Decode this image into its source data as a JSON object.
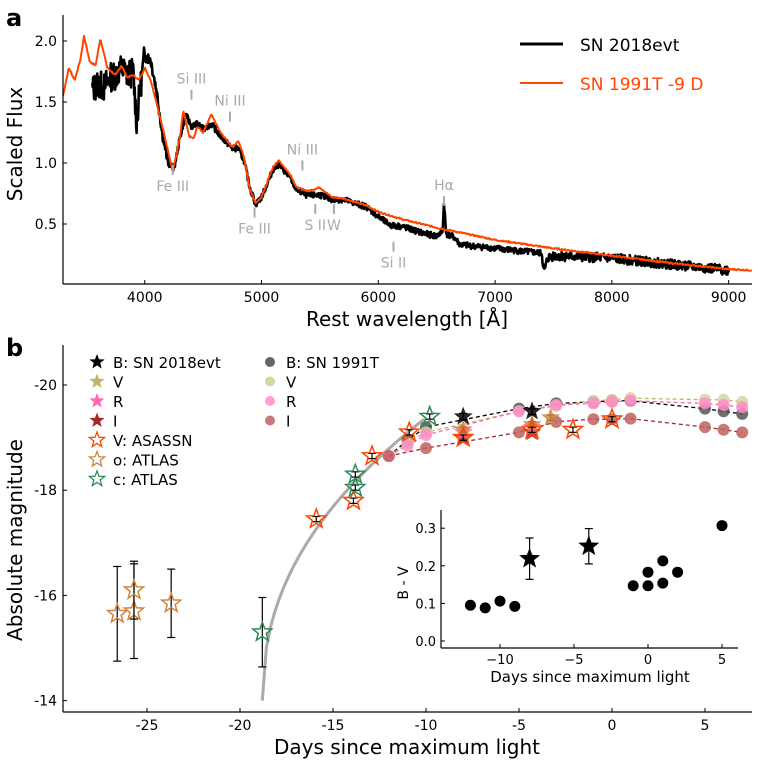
{
  "chart_data": [
    {
      "panel_label": "a",
      "type": "line",
      "xlabel": "Rest wavelength [Å]",
      "ylabel": "Scaled Flux",
      "xlim": [
        3300,
        9200
      ],
      "ylim": [
        0.0,
        2.2
      ],
      "xticks": [
        4000,
        5000,
        6000,
        7000,
        8000,
        9000
      ],
      "yticks": [
        0.5,
        1.0,
        1.5,
        2.0
      ],
      "ytick_labels": [
        "0.5",
        "1.0",
        "1.5",
        "2.0"
      ],
      "legend": {
        "placement": "top-right",
        "entries": [
          {
            "label": "SN 2018evt",
            "color": "#000000"
          },
          {
            "label": "SN 1991T -9 D",
            "color": "#ff4500"
          }
        ]
      },
      "series": [
        {
          "name": "SN 2018evt",
          "color": "#000000",
          "noisy": true,
          "x": [
            3550,
            3600,
            3650,
            3700,
            3750,
            3800,
            3850,
            3900,
            3930,
            3960,
            4000,
            4050,
            4100,
            4150,
            4200,
            4250,
            4300,
            4350,
            4400,
            4450,
            4500,
            4570,
            4650,
            4750,
            4800,
            4850,
            4900,
            4950,
            5000,
            5100,
            5150,
            5250,
            5300,
            5400,
            5500,
            5600,
            5700,
            5900,
            6000,
            6100,
            6200,
            6400,
            6500,
            6550,
            6563,
            6580,
            6650,
            6700,
            7000,
            7400,
            7420,
            7450,
            7500,
            8000,
            8500,
            9000,
            9005
          ],
          "y": [
            1.6,
            1.65,
            1.62,
            1.7,
            1.72,
            1.78,
            1.72,
            1.75,
            1.35,
            1.6,
            1.88,
            1.85,
            1.6,
            1.25,
            1.0,
            0.95,
            1.2,
            1.4,
            1.3,
            1.32,
            1.28,
            1.32,
            1.22,
            1.12,
            1.12,
            1.02,
            0.8,
            0.66,
            0.72,
            0.95,
            0.99,
            0.87,
            0.78,
            0.73,
            0.74,
            0.7,
            0.7,
            0.64,
            0.56,
            0.49,
            0.48,
            0.42,
            0.4,
            0.44,
            0.68,
            0.42,
            0.39,
            0.33,
            0.3,
            0.26,
            0.1,
            0.22,
            0.24,
            0.22,
            0.17,
            0.12,
            0.22
          ]
        },
        {
          "name": "SN 1991T -9 D",
          "color": "#ff4500",
          "noisy": false,
          "x": [
            3300,
            3350,
            3400,
            3450,
            3480,
            3530,
            3580,
            3620,
            3680,
            3750,
            3800,
            3850,
            3900,
            3950,
            4000,
            4050,
            4100,
            4200,
            4240,
            4300,
            4330,
            4380,
            4420,
            4450,
            4500,
            4570,
            4650,
            4750,
            4800,
            4850,
            4900,
            4950,
            5000,
            5100,
            5150,
            5250,
            5300,
            5400,
            5500,
            5600,
            5700,
            5900,
            6000,
            6200,
            6500,
            7000,
            7500,
            8000,
            8500,
            9000,
            9200
          ],
          "y": [
            1.55,
            1.78,
            1.68,
            1.85,
            2.04,
            1.83,
            1.8,
            2.02,
            1.78,
            1.72,
            1.8,
            1.7,
            1.72,
            1.68,
            1.78,
            1.68,
            1.5,
            1.1,
            0.93,
            1.2,
            1.43,
            1.22,
            1.2,
            1.3,
            1.25,
            1.4,
            1.25,
            1.13,
            1.18,
            1.05,
            0.78,
            0.67,
            0.72,
            0.97,
            1.02,
            0.9,
            0.8,
            0.77,
            0.8,
            0.72,
            0.71,
            0.65,
            0.6,
            0.54,
            0.47,
            0.37,
            0.3,
            0.24,
            0.18,
            0.13,
            0.12
          ]
        }
      ],
      "annotations": [
        {
          "label": "Si III",
          "x": 4400,
          "y": 1.65,
          "tick_below": true
        },
        {
          "label": "Ni III",
          "x": 4730,
          "y": 1.47,
          "tick_below": true
        },
        {
          "label": "Ni III",
          "x": 5350,
          "y": 1.07,
          "tick_below": true
        },
        {
          "label": "Hα",
          "x": 6563,
          "y": 0.78,
          "tick_below": true
        },
        {
          "label": "Fe III",
          "x": 4240,
          "y": 0.87,
          "tick_above": true
        },
        {
          "label": "Fe III",
          "x": 4940,
          "y": 0.52,
          "tick_above": true
        },
        {
          "label": "S II",
          "x": 5460,
          "y": 0.55,
          "tick_above": true
        },
        {
          "label": "W",
          "x": 5620,
          "y": 0.55,
          "tick_above": true
        },
        {
          "label": "Si II",
          "x": 6130,
          "y": 0.24,
          "tick_above": true
        }
      ],
      "annotation_color": "#aaaaaa"
    },
    {
      "panel_label": "b",
      "type": "scatter",
      "xlabel": "Days since maximum light",
      "ylabel": "Absolute magnitude",
      "xlim": [
        -29.2,
        7.8
      ],
      "ylim": [
        -13.8,
        -20.6
      ],
      "y_inverted": true,
      "xticks": [
        -25,
        -20,
        -15,
        -10,
        -5,
        0,
        5
      ],
      "yticks": [
        -20,
        -18,
        -16,
        -14
      ],
      "legend": {
        "placement": "top-left",
        "entries": [
          {
            "label": "B: SN 2018evt",
            "marker": "star-filled",
            "color": "#000000"
          },
          {
            "label": "V",
            "marker": "star-filled",
            "color": "#bdb76b"
          },
          {
            "label": "R",
            "marker": "star-filled",
            "color": "#ff69b4"
          },
          {
            "label": "I",
            "marker": "star-filled",
            "color": "#a52a2a"
          },
          {
            "label": "V: ASASSN",
            "marker": "star-open",
            "color": "#ff4500"
          },
          {
            "label": "o: ATLAS",
            "marker": "star-open",
            "color": "#cd853f"
          },
          {
            "label": "c: ATLAS",
            "marker": "star-open",
            "color": "#2e8b57"
          },
          {
            "label": "B: SN 1991T",
            "marker": "circle",
            "color": "#666666"
          },
          {
            "label": "V",
            "marker": "circle",
            "color": "#d8d4a4"
          },
          {
            "label": "R",
            "marker": "circle",
            "color": "#ff9fd0"
          },
          {
            "label": "I",
            "marker": "circle",
            "color": "#c87878"
          }
        ]
      },
      "fit_curve": {
        "color": "#aaaaaa",
        "t0": -18.8,
        "t_end": -10.1,
        "mag_start": -14.0,
        "mag_end": -19.35
      },
      "series": [
        {
          "name": "B: SN 1991T",
          "marker": "circle",
          "color": "#555555",
          "line": "#000000",
          "x": [
            -12,
            -11,
            -10,
            -5,
            -3,
            -1,
            0,
            1,
            5,
            6,
            7
          ],
          "y": [
            -18.65,
            -18.95,
            -19.2,
            -19.55,
            -19.65,
            -19.68,
            -19.7,
            -19.7,
            -19.55,
            -19.5,
            -19.45
          ]
        },
        {
          "name": "V: SN 1991T",
          "marker": "circle",
          "color": "#d8d4a4",
          "line": "#bdb76b",
          "x": [
            -12,
            -11,
            -10,
            -5,
            -3,
            -1,
            0,
            1,
            5,
            6,
            7
          ],
          "y": [
            -18.65,
            -18.9,
            -19.1,
            -19.5,
            -19.6,
            -19.7,
            -19.72,
            -19.75,
            -19.72,
            -19.72,
            -19.68
          ]
        },
        {
          "name": "R: SN 1991T",
          "marker": "circle",
          "color": "#ff8cc6",
          "line": "#ff69b4",
          "x": [
            -12,
            -11,
            -10,
            -5,
            -3,
            -1,
            0,
            1,
            5,
            6,
            7
          ],
          "y": [
            -18.65,
            -18.85,
            -19.05,
            -19.5,
            -19.62,
            -19.65,
            -19.68,
            -19.7,
            -19.65,
            -19.62,
            -19.58
          ]
        },
        {
          "name": "I: SN 1991T",
          "marker": "circle",
          "color": "#c06060",
          "line": "#a52a2a",
          "x": [
            -12,
            -10,
            -5,
            -3,
            -1,
            0,
            1,
            5,
            6,
            7
          ],
          "y": [
            -18.65,
            -18.8,
            -19.1,
            -19.3,
            -19.35,
            -19.35,
            -19.36,
            -19.2,
            -19.15,
            -19.1
          ]
        },
        {
          "name": "I: SN 2018evt",
          "marker": "star-filled",
          "color": "#a52a2a",
          "x": [
            -8,
            -4.3
          ],
          "y": [
            -19.0,
            -19.1
          ],
          "err": [
            0.05,
            0.05
          ]
        },
        {
          "name": "R: SN 2018evt",
          "marker": "star-filled",
          "color": "#ff69b4",
          "x": [
            -8,
            -4.3
          ],
          "y": [
            -19.1,
            -19.2
          ],
          "err": [
            0.05,
            0.05
          ]
        },
        {
          "name": "V: SN 2018evt",
          "marker": "star-filled",
          "color": "#cd853f",
          "x": [
            -8,
            -4.3,
            -3.3
          ],
          "y": [
            -19.15,
            -19.25,
            -19.38
          ],
          "err": [
            0.05,
            0.05,
            0.05
          ]
        },
        {
          "name": "B: SN 2018evt",
          "marker": "star-filled",
          "color": "#000000",
          "x": [
            -8,
            -4.3
          ],
          "y": [
            -19.4,
            -19.5
          ],
          "err": [
            0.06,
            0.06
          ]
        },
        {
          "name": "V: ASASSN",
          "marker": "star-open",
          "color": "#ff4500",
          "x": [
            -15.9,
            -13.9,
            -12.9,
            -10.9,
            -8.0,
            -4.3,
            -2.1,
            0
          ],
          "y": [
            -17.45,
            -17.8,
            -18.65,
            -19.1,
            -19.0,
            -19.15,
            -19.15,
            -19.35
          ],
          "err": [
            0.05,
            0.05,
            0.05,
            0.05,
            0.05,
            0.05,
            0.05,
            0.05
          ]
        },
        {
          "name": "o: ATLAS",
          "marker": "star-open",
          "color": "#cd853f",
          "x": [
            -26.6,
            -25.7,
            -25.7,
            -23.7
          ],
          "y": [
            -15.65,
            -15.7,
            -16.1,
            -15.85
          ],
          "err": [
            0.9,
            0.9,
            0.55,
            0.65
          ]
        },
        {
          "name": "c: ATLAS",
          "marker": "star-open",
          "color": "#2e8b57",
          "x": [
            -18.8,
            -13.8,
            -13.8,
            -9.8
          ],
          "y": [
            -15.3,
            -18.05,
            -18.3,
            -19.4
          ],
          "err": [
            0.66,
            0.05,
            0.05,
            0.05
          ]
        }
      ]
    },
    {
      "panel_label": "inset",
      "type": "scatter",
      "xlabel": "Days since maximum light",
      "ylabel": "B - V",
      "xlim": [
        -14,
        6.2
      ],
      "ylim": [
        -0.02,
        0.35
      ],
      "xticks": [
        -10,
        -5,
        0,
        5
      ],
      "xtick_labels": [
        "−10",
        "−5",
        "0",
        "5"
      ],
      "yticks": [
        0.0,
        0.1,
        0.2,
        0.3
      ],
      "ytick_labels": [
        "0.0",
        "0.1",
        "0.2",
        "0.3"
      ],
      "series": [
        {
          "name": "SN 1991T",
          "marker": "circle",
          "color": "#000000",
          "x": [
            -12,
            -11,
            -10,
            -9,
            -1,
            0,
            0,
            1,
            1,
            2,
            5
          ],
          "y": [
            0.095,
            0.088,
            0.106,
            0.092,
            0.147,
            0.147,
            0.183,
            0.154,
            0.213,
            0.183,
            0.307
          ]
        },
        {
          "name": "SN 2018evt",
          "marker": "star-filled",
          "color": "#000000",
          "x": [
            -8,
            -4
          ],
          "y": [
            0.219,
            0.252
          ],
          "err": [
            0.055,
            0.047
          ]
        }
      ]
    }
  ]
}
